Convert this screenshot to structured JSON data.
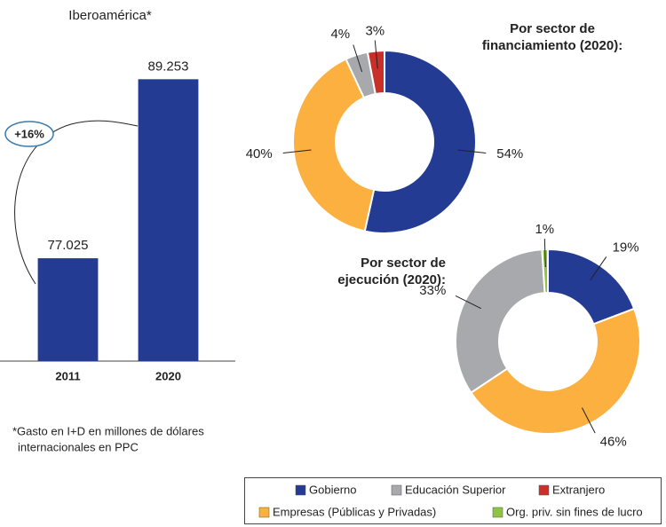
{
  "chart_data": [
    {
      "type": "bar",
      "title": "Iberoamérica*",
      "categories": [
        "2011",
        "2020"
      ],
      "values": [
        77025,
        89253
      ],
      "value_labels": [
        "77.025",
        "89.253"
      ],
      "color": "#233b93",
      "ylim": [
        70000,
        90000
      ],
      "annotation": "+16%",
      "footnote": [
        "*Gasto en I+D en millones de dólares",
        "internacionales en PPC"
      ]
    },
    {
      "type": "pie",
      "title": [
        "Por sector de",
        "financiamiento (2020):"
      ],
      "categories": [
        "Gobierno",
        "Empresas (Públicas y Privadas)",
        "Educación Superior",
        "Extranjero"
      ],
      "values": [
        54,
        40,
        4,
        3
      ],
      "value_labels": [
        "54%",
        "40%",
        "4%",
        "3%"
      ],
      "colors": [
        "#233b93",
        "#fbb040",
        "#a7a9ac",
        "#c9302a"
      ]
    },
    {
      "type": "pie",
      "title": [
        "Por sector de",
        "ejecución (2020):"
      ],
      "categories": [
        "Gobierno",
        "Empresas (Públicas y Privadas)",
        "Educación Superior",
        "Org. priv. sin fines de lucro"
      ],
      "values": [
        19,
        46,
        33,
        1
      ],
      "value_labels": [
        "19%",
        "46%",
        "33%",
        "1%"
      ],
      "colors": [
        "#233b93",
        "#fbb040",
        "#a7a9ac",
        "#8dc63f"
      ]
    }
  ],
  "legend": [
    {
      "name": "Gobierno",
      "color": "#233b93"
    },
    {
      "name": "Educación Superior",
      "color": "#a7a9ac"
    },
    {
      "name": "Extranjero",
      "color": "#c9302a"
    },
    {
      "name": "Empresas (Públicas y Privadas)",
      "color": "#fbb040"
    },
    {
      "name": "Org. priv. sin fines de lucro",
      "color": "#8dc63f"
    }
  ]
}
